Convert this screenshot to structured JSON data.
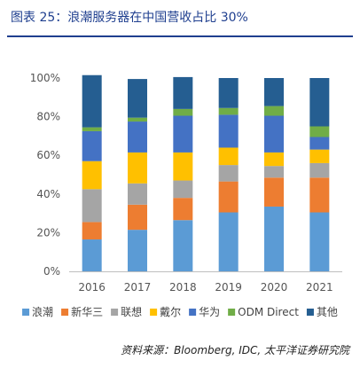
{
  "header": {
    "title": "图表 25：浪潮服务器在中国营收占比 30%"
  },
  "footer": {
    "source": "资料来源：Bloomberg, IDC, 太平洋证券研究院"
  },
  "colors": {
    "浪潮": "#5b9bd5",
    "新华三": "#ed7d31",
    "联想": "#a5a5a5",
    "戴尔": "#ffc000",
    "华为": "#4472c4",
    "ODM Direct": "#70ad47",
    "其他": "#255e91"
  },
  "chart_data": {
    "type": "bar",
    "stacked": true,
    "percent": true,
    "categories": [
      "2016",
      "2017",
      "2018",
      "2019",
      "2020",
      "2021"
    ],
    "ylim": [
      0,
      100
    ],
    "yticks": [
      "0%",
      "20%",
      "40%",
      "60%",
      "80%",
      "100%"
    ],
    "legend_position": "bottom",
    "series": [
      {
        "name": "浪潮",
        "values": [
          16.5,
          21.5,
          26.5,
          30.5,
          33.5,
          30.5
        ]
      },
      {
        "name": "新华三",
        "values": [
          9,
          13,
          11.5,
          16,
          15,
          18
        ]
      },
      {
        "name": "联想",
        "values": [
          17,
          11,
          9,
          8.5,
          6,
          7.5
        ]
      },
      {
        "name": "戴尔",
        "values": [
          14.5,
          16,
          14.5,
          9,
          7,
          7
        ]
      },
      {
        "name": "华为",
        "values": [
          15.5,
          16,
          19,
          17,
          19,
          6.5
        ]
      },
      {
        "name": "ODM Direct",
        "values": [
          2,
          2,
          3.5,
          3.5,
          5,
          5.5
        ]
      },
      {
        "name": "其他",
        "values": [
          27,
          20,
          16.5,
          15.5,
          14.5,
          25
        ]
      }
    ]
  }
}
